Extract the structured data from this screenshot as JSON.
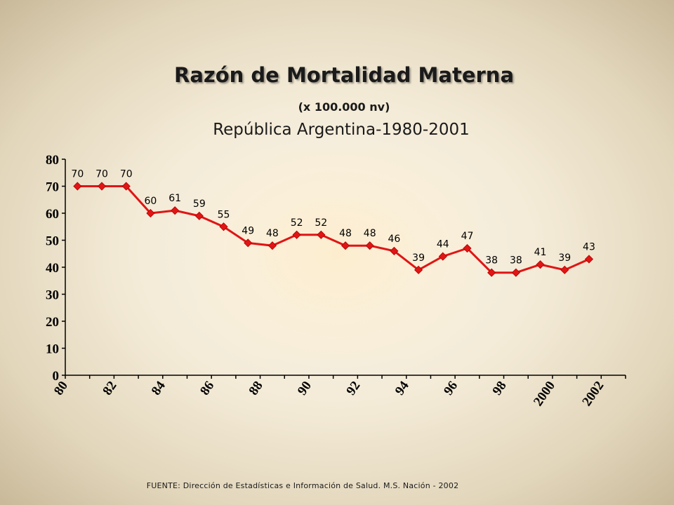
{
  "chart_data": {
    "type": "line",
    "title": "Razón de Mortalidad Materna",
    "unit_note": "(x 100.000 nv)",
    "subtitle": "República Argentina-1980-2001",
    "x": [
      1980,
      1981,
      1982,
      1983,
      1984,
      1985,
      1986,
      1987,
      1988,
      1989,
      1990,
      1991,
      1992,
      1993,
      1994,
      1995,
      1996,
      1997,
      1998,
      1999,
      2000,
      2001
    ],
    "series": [
      {
        "values": [
          70,
          70,
          70,
          60,
          61,
          59,
          55,
          49,
          48,
          52,
          52,
          48,
          48,
          46,
          39,
          44,
          47,
          38,
          38,
          41,
          39,
          43
        ]
      }
    ],
    "x_tick_labels": [
      "80",
      "82",
      "84",
      "86",
      "88",
      "90",
      "92",
      "94",
      "96",
      "98",
      "2000",
      "2002"
    ],
    "y_tick_labels": [
      "0",
      "10",
      "20",
      "30",
      "40",
      "50",
      "60",
      "70",
      "80"
    ],
    "ylim": [
      0,
      80
    ],
    "xlim": [
      1980,
      2003
    ],
    "grid": false,
    "colors": {
      "line": "#e01515",
      "marker": "#e01515"
    }
  },
  "footer": "FUENTE: Dirección de Estadísticas e Información de Salud. M.S. Nación - 2002"
}
